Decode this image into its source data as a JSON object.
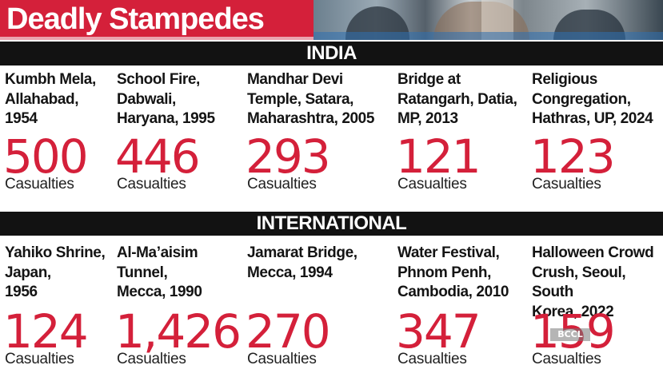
{
  "title": "Deadly Stampedes",
  "sections": {
    "india": {
      "label": "INDIA",
      "items": [
        {
          "location": "Kumbh Mela,\nAllahabad,\n1954",
          "value": "500",
          "caption": "Casualties"
        },
        {
          "location": "School Fire,\nDabwali,\nHaryana, 1995",
          "value": "446",
          "caption": "Casualties"
        },
        {
          "location": "Mandhar Devi\nTemple, Satara,\nMaharashtra, 2005",
          "value": "293",
          "caption": "Casualties"
        },
        {
          "location": "Bridge at\nRatangarh, Datia,\nMP, 2013",
          "value": "121",
          "caption": "Casualties"
        },
        {
          "location": "Religious\nCongregation,\nHathras, UP, 2024",
          "value": "123",
          "caption": "Casualties"
        }
      ]
    },
    "international": {
      "label": "INTERNATIONAL",
      "items": [
        {
          "location": "Yahiko Shrine,\nJapan,\n1956",
          "value": "124",
          "caption": "Casualties"
        },
        {
          "location": "Al-Ma’aisim\nTunnel,\nMecca, 1990",
          "value": "1,426",
          "caption": "Casualties"
        },
        {
          "location": "Jamarat Bridge,\nMecca, 1994",
          "value": "270",
          "caption": "Casualties"
        },
        {
          "location": "Water Festival,\nPhnom Penh,\nCambodia, 2010",
          "value": "347",
          "caption": "Casualties"
        },
        {
          "location": "Halloween Crowd\nCrush, Seoul, South\nKorea, 2022",
          "value": "159",
          "caption": "Casualties"
        }
      ]
    }
  },
  "watermark": "BCCL",
  "colors": {
    "accent": "#d4203a",
    "bar": "#121212",
    "text": "#141414"
  }
}
